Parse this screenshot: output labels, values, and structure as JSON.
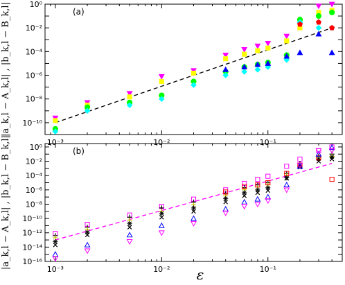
{
  "chart_data": [
    {
      "type": "scatter",
      "panel_label": "(a)",
      "xlabel": "ε",
      "ylabel": "|a_k,l − A_k,l| , |b_k,l − B_k,l|",
      "xscale": "log",
      "yscale": "log",
      "xlim": [
        0.0008,
        0.5
      ],
      "ylim": [
        1e-11,
        1
      ],
      "x_ticks": [
        0.001,
        0.01,
        0.1
      ],
      "x_tick_labels": [
        "10⁻³",
        "10⁻²",
        "10⁻¹"
      ],
      "y_ticks": [
        1e-10,
        1e-08,
        1e-06,
        0.0001,
        0.01,
        1
      ],
      "y_tick_labels": [
        "10⁻¹⁰",
        "10⁻⁸",
        "10⁻⁶",
        "10⁻⁴",
        "10⁻²",
        "10⁰"
      ],
      "x": [
        0.001,
        0.002,
        0.005,
        0.01,
        0.02,
        0.04,
        0.06,
        0.08,
        0.1,
        0.15,
        0.2,
        0.3,
        0.4
      ],
      "series": [
        {
          "marker": "triangle-down",
          "color": "#ff00ff",
          "values": [
            2.5e-10,
            5e-09,
            3e-08,
            8e-07,
            2.5e-06,
            5e-05,
            0.00015,
            0.0003,
            0.0005,
            0.002,
            0.02,
            0.7,
            1.0
          ]
        },
        {
          "marker": "square",
          "color": "#ffff00",
          "values": [
            1.5e-10,
            3e-09,
            1.5e-08,
            3e-07,
            1.5e-06,
            2.5e-05,
            6e-05,
            0.00012,
            0.0002,
            0.0008,
            0.01,
            0.2,
            0.3
          ]
        },
        {
          "marker": "circle",
          "color": "#00ff00",
          "values": [
            3e-11,
            2e-09,
            5e-09,
            2e-08,
            3e-07,
            2e-06,
            5e-06,
            8e-06,
            1.2e-05,
            5e-05,
            0.05,
            0.1,
            0.2
          ]
        },
        {
          "marker": "diamond",
          "color": "#00ffff",
          "values": [
            1.8e-11,
            1e-09,
            3e-09,
            1e-08,
            1.5e-07,
            1e-06,
            2e-06,
            3e-06,
            5e-06,
            2e-05,
            0.03,
            0.01,
            0.01
          ]
        },
        {
          "marker": "triangle-up",
          "color": "#0000ff",
          "values": [
            null,
            null,
            null,
            null,
            null,
            3e-06,
            5e-06,
            8e-06,
            1e-05,
            4e-05,
            8e-05,
            0.003,
            8e-05
          ]
        },
        {
          "marker": "pentagon",
          "color": "#ff0000",
          "values": [
            null,
            null,
            null,
            null,
            null,
            null,
            null,
            null,
            null,
            null,
            0.02,
            0.03,
            0.01
          ]
        }
      ],
      "reference_line": {
        "style": "dashed",
        "color": "#000000",
        "points": [
          [
            0.001,
            1e-10
          ],
          [
            0.4,
            0.01
          ]
        ]
      }
    },
    {
      "type": "scatter",
      "panel_label": "(b)",
      "xlabel": "ε",
      "ylabel": "|a_k,l − A_k,l| , |b_k,l − B_k,l|",
      "xscale": "log",
      "yscale": "log",
      "xlim": [
        0.0008,
        0.5
      ],
      "ylim": [
        1e-16,
        3
      ],
      "x_ticks": [
        0.001,
        0.01,
        0.1
      ],
      "x_tick_labels": [
        "10⁻³",
        "10⁻²",
        "10⁻¹"
      ],
      "y_ticks": [
        1e-16,
        1e-14,
        1e-12,
        1e-10,
        1e-08,
        1e-06,
        0.0001,
        0.01,
        1
      ],
      "y_tick_labels": [
        "10⁻¹⁶",
        "10⁻¹⁴",
        "10⁻¹²",
        "10⁻¹⁰",
        "10⁻⁸",
        "10⁻⁶",
        "10⁻⁴",
        "10⁻²",
        "10⁰"
      ],
      "x": [
        0.001,
        0.002,
        0.005,
        0.01,
        0.02,
        0.04,
        0.06,
        0.08,
        0.1,
        0.15,
        0.2,
        0.3,
        0.4
      ],
      "series": [
        {
          "marker": "square-open",
          "color": "#ff00ff",
          "values": [
            8e-13,
            1.5e-11,
            3e-10,
            5e-09,
            5e-08,
            1e-06,
            8e-06,
            3e-05,
            8e-05,
            0.002,
            0.02,
            0.3,
            1.0
          ]
        },
        {
          "marker": "plus",
          "color": "#000000",
          "values": [
            4e-13,
            6e-12,
            1.5e-10,
            3e-09,
            2e-08,
            3e-07,
            2e-06,
            5e-06,
            1e-05,
            0.0002,
            0.005,
            0.05,
            0.1
          ]
        },
        {
          "marker": "plus",
          "color": "#cccc00",
          "values": [
            2e-13,
            3e-12,
            6e-11,
            1e-09,
            8e-09,
            1.5e-07,
            1e-06,
            2.5e-06,
            5e-06,
            0.0001,
            0.003,
            0.03,
            0.05
          ]
        },
        {
          "marker": "asterisk",
          "color": "#000000",
          "values": [
            6e-14,
            1.2e-12,
            2e-11,
            5e-10,
            3e-09,
            6e-08,
            4e-07,
            1e-06,
            2e-06,
            5e-05,
            0.002,
            0.02,
            0.04
          ]
        },
        {
          "marker": "cross",
          "color": "#000000",
          "values": [
            2e-14,
            5e-13,
            6e-12,
            1.5e-10,
            1e-09,
            2e-08,
            1.5e-07,
            4e-07,
            8e-07,
            4e-05,
            0.0015,
            0.01,
            0.02
          ]
        },
        {
          "marker": "square-open",
          "color": "#ff0000",
          "values": [
            null,
            null,
            null,
            null,
            null,
            5e-07,
            3e-06,
            5e-06,
            1e-05,
            0.0002,
            0.003,
            0.03,
            3e-05
          ]
        },
        {
          "marker": "triangle-up-open",
          "color": "#0000ff",
          "values": [
            1e-15,
            2e-14,
            5e-13,
            1e-11,
            1e-10,
            2e-09,
            2e-08,
            5e-08,
            1e-07,
            5e-06,
            0.002,
            0.1,
            0.8
          ]
        },
        {
          "marker": "triangle-down-open",
          "color": "#ff00ff",
          "values": [
            2.5e-16,
            3e-15,
            6e-14,
            1e-12,
            2e-11,
            6e-10,
            5e-09,
            1e-08,
            3e-08,
            1e-06,
            0.003,
            0.3,
            0.3
          ]
        }
      ],
      "reference_line": {
        "style": "dashed",
        "color": "#ff00ff",
        "points": [
          [
            0.001,
            1e-13
          ],
          [
            0.4,
            0.005
          ]
        ]
      }
    }
  ]
}
